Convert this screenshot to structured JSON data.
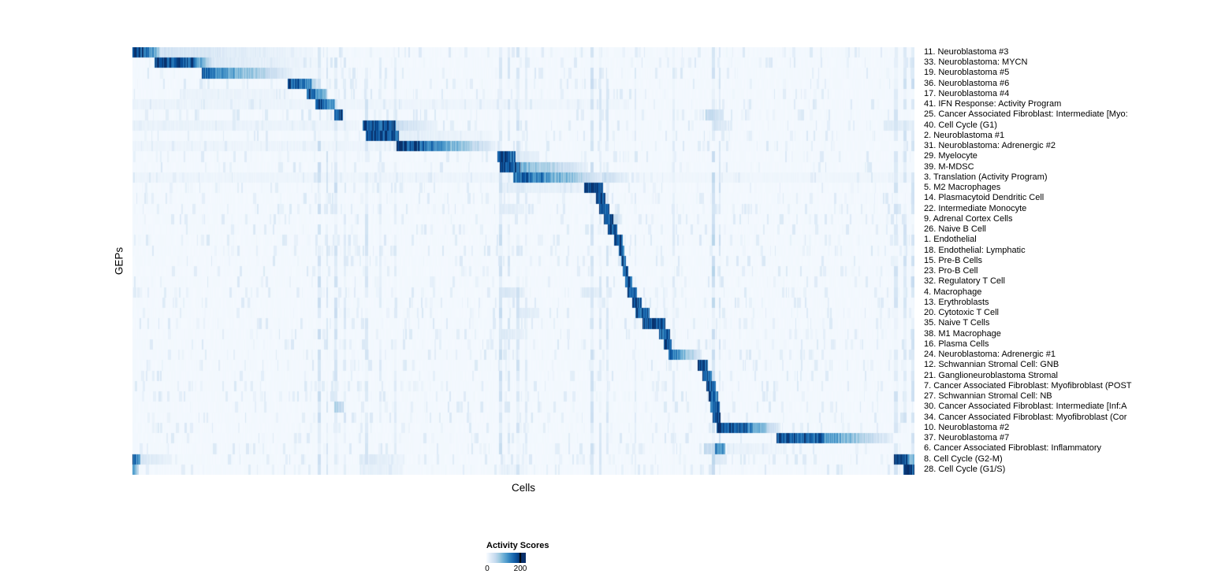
{
  "chart_data": {
    "type": "heatmap",
    "title": "",
    "xlabel": "Cells",
    "ylabel": "GEPs",
    "colormap": "Blues",
    "label_side": "right",
    "legend": {
      "title": "Activity Scores",
      "min_label": "0",
      "max_label": "200",
      "min_value": 0,
      "max_value": 200,
      "low_color": "#f7fbff",
      "high_color": "#08306b"
    },
    "noise_columns": [
      {
        "x": 0.236,
        "w": 0.004,
        "v": 0.22
      },
      {
        "x": 0.247,
        "w": 0.003,
        "v": 0.18
      },
      {
        "x": 0.258,
        "w": 0.004,
        "v": 0.2
      },
      {
        "x": 0.27,
        "w": 0.003,
        "v": 0.15
      },
      {
        "x": 0.297,
        "w": 0.004,
        "v": 0.18
      },
      {
        "x": 0.315,
        "w": 0.003,
        "v": 0.12
      },
      {
        "x": 0.334,
        "w": 0.003,
        "v": 0.12
      },
      {
        "x": 0.468,
        "w": 0.004,
        "v": 0.22
      },
      {
        "x": 0.479,
        "w": 0.003,
        "v": 0.16
      },
      {
        "x": 0.49,
        "w": 0.004,
        "v": 0.18
      },
      {
        "x": 0.502,
        "w": 0.003,
        "v": 0.12
      },
      {
        "x": 0.585,
        "w": 0.004,
        "v": 0.2
      },
      {
        "x": 0.596,
        "w": 0.003,
        "v": 0.16
      },
      {
        "x": 0.605,
        "w": 0.003,
        "v": 0.16
      },
      {
        "x": 0.642,
        "w": 0.002,
        "v": 0.12
      },
      {
        "x": 0.69,
        "w": 0.003,
        "v": 0.12
      },
      {
        "x": 0.74,
        "w": 0.004,
        "v": 0.25
      },
      {
        "x": 0.749,
        "w": 0.003,
        "v": 0.2
      },
      {
        "x": 0.973,
        "w": 0.005,
        "v": 0.18
      },
      {
        "x": 0.985,
        "w": 0.004,
        "v": 0.18
      },
      {
        "x": 0.995,
        "w": 0.004,
        "v": 0.2
      }
    ],
    "rows": [
      {
        "label": "11. Neuroblastoma #3",
        "segments": [
          [
            0.0,
            0.01,
            1.0,
            1.0
          ],
          [
            0.01,
            0.034,
            0.95,
            0.4
          ],
          [
            0.034,
            0.23,
            0.2,
            0.04
          ]
        ]
      },
      {
        "label": "33. Neuroblastoma: MYCN",
        "segments": [
          [
            0.028,
            0.08,
            1.0,
            0.85
          ],
          [
            0.08,
            0.1,
            0.7,
            0.25
          ],
          [
            0.1,
            0.235,
            0.15,
            0.04
          ]
        ]
      },
      {
        "label": "19. Neuroblastoma #5",
        "segments": [
          [
            0.088,
            0.115,
            0.85,
            0.65
          ],
          [
            0.115,
            0.205,
            0.6,
            0.08
          ],
          [
            0.205,
            0.245,
            0.06,
            0.03
          ]
        ]
      },
      {
        "label": "36. Neuroblastoma #6",
        "segments": [
          [
            0.198,
            0.228,
            0.95,
            0.65
          ],
          [
            0.228,
            0.24,
            0.4,
            0.08
          ]
        ]
      },
      {
        "label": "17. Neuroblastoma #4",
        "segments": [
          [
            0.222,
            0.247,
            0.95,
            0.45
          ],
          [
            0.06,
            0.2,
            0.07,
            0.05
          ]
        ]
      },
      {
        "label": "41. IFN Response: Activity Program",
        "segments": [
          [
            0.233,
            0.259,
            1.0,
            0.55
          ],
          [
            0.0,
            0.23,
            0.06,
            0.05
          ],
          [
            0.26,
            0.63,
            0.05,
            0.04
          ]
        ]
      },
      {
        "label": "25. Cancer Associated Fibroblast: Intermediate [Myo:",
        "segments": [
          [
            0.258,
            0.269,
            1.0,
            0.9
          ],
          [
            0.732,
            0.756,
            0.28,
            0.15
          ]
        ]
      },
      {
        "label": "40. Cell Cycle (G1)",
        "segments": [
          [
            0.294,
            0.336,
            0.95,
            0.85
          ],
          [
            0.336,
            0.39,
            0.25,
            0.06
          ],
          [
            0.0,
            0.29,
            0.07,
            0.05
          ],
          [
            0.74,
            0.76,
            0.18,
            0.12
          ],
          [
            0.96,
            1.0,
            0.12,
            0.1
          ]
        ]
      },
      {
        "label": "2. Neuroblastoma #1",
        "segments": [
          [
            0.298,
            0.34,
            1.0,
            0.95
          ],
          [
            0.34,
            0.46,
            0.1,
            0.04
          ]
        ]
      },
      {
        "label": "31. Neuroblastoma: Adrenergic #2",
        "segments": [
          [
            0.337,
            0.365,
            1.0,
            0.9
          ],
          [
            0.365,
            0.465,
            0.85,
            0.06
          ],
          [
            0.0,
            0.33,
            0.05,
            0.05
          ]
        ]
      },
      {
        "label": "29. Myelocyte",
        "segments": [
          [
            0.466,
            0.489,
            1.0,
            0.8
          ],
          [
            0.49,
            0.52,
            0.15,
            0.06
          ]
        ]
      },
      {
        "label": "39. M-MDSC",
        "segments": [
          [
            0.469,
            0.495,
            1.0,
            0.85
          ],
          [
            0.495,
            0.582,
            0.5,
            0.08
          ]
        ]
      },
      {
        "label": "3. Translation (Activity Program)",
        "segments": [
          [
            0.486,
            0.525,
            0.9,
            0.7
          ],
          [
            0.525,
            0.6,
            0.65,
            0.12
          ],
          [
            0.6,
            0.635,
            0.25,
            0.08
          ],
          [
            0.0,
            0.485,
            0.05,
            0.05
          ],
          [
            0.64,
            1.0,
            0.04,
            0.04
          ]
        ]
      },
      {
        "label": "5. M2 Macrophages",
        "segments": [
          [
            0.577,
            0.601,
            1.0,
            0.85
          ],
          [
            0.47,
            0.575,
            0.1,
            0.07
          ]
        ]
      },
      {
        "label": "14. Plasmacytoid Dendritic Cell",
        "segments": [
          [
            0.592,
            0.604,
            1.0,
            0.9
          ]
        ]
      },
      {
        "label": "22. Intermediate Monocyte",
        "segments": [
          [
            0.596,
            0.609,
            0.95,
            0.85
          ],
          [
            0.468,
            0.5,
            0.14,
            0.08
          ]
        ]
      },
      {
        "label": "9. Adrenal Cortex Cells",
        "segments": [
          [
            0.602,
            0.614,
            1.0,
            0.9
          ],
          [
            0.614,
            0.625,
            0.3,
            0.1
          ]
        ]
      },
      {
        "label": "26. Naive B Cell",
        "segments": [
          [
            0.607,
            0.619,
            1.0,
            0.9
          ]
        ]
      },
      {
        "label": "1. Endothelial",
        "segments": [
          [
            0.615,
            0.627,
            1.0,
            0.9
          ]
        ]
      },
      {
        "label": "18. Endothelial: Lymphatic",
        "segments": [
          [
            0.621,
            0.629,
            0.95,
            0.85
          ]
        ]
      },
      {
        "label": "15. Pre-B Cells",
        "segments": [
          [
            0.624,
            0.631,
            0.95,
            0.85
          ]
        ]
      },
      {
        "label": "23. Pro-B Cell",
        "segments": [
          [
            0.627,
            0.634,
            0.95,
            0.85
          ]
        ]
      },
      {
        "label": "32. Regulatory T Cell",
        "segments": [
          [
            0.63,
            0.639,
            0.95,
            0.85
          ]
        ]
      },
      {
        "label": "4. Macrophage",
        "segments": [
          [
            0.633,
            0.645,
            0.95,
            0.8
          ],
          [
            0.468,
            0.5,
            0.18,
            0.1
          ],
          [
            0.575,
            0.6,
            0.14,
            0.08
          ]
        ]
      },
      {
        "label": "13. Erythroblasts",
        "segments": [
          [
            0.639,
            0.651,
            1.0,
            0.9
          ]
        ]
      },
      {
        "label": "20. Cytotoxic T Cell",
        "segments": [
          [
            0.643,
            0.661,
            0.95,
            0.8
          ],
          [
            0.49,
            0.52,
            0.14,
            0.08
          ]
        ]
      },
      {
        "label": "35. Naive T Cells",
        "segments": [
          [
            0.652,
            0.681,
            1.0,
            0.9
          ]
        ]
      },
      {
        "label": "38. M1 Macrophage",
        "segments": [
          [
            0.673,
            0.687,
            0.95,
            0.8
          ],
          [
            0.468,
            0.5,
            0.14,
            0.08
          ]
        ]
      },
      {
        "label": "16. Plasma Cells",
        "segments": [
          [
            0.679,
            0.689,
            0.95,
            0.85
          ]
        ]
      },
      {
        "label": "24. Neuroblastoma: Adrenergic #1",
        "segments": [
          [
            0.685,
            0.702,
            0.85,
            0.6
          ],
          [
            0.702,
            0.727,
            0.5,
            0.12
          ]
        ]
      },
      {
        "label": "12. Schwannian Stromal Cell: GNB",
        "segments": [
          [
            0.722,
            0.735,
            1.0,
            0.9
          ]
        ]
      },
      {
        "label": "21. Ganglioneuroblastoma Stromal",
        "segments": [
          [
            0.728,
            0.74,
            0.95,
            0.8
          ]
        ]
      },
      {
        "label": "7. Cancer Associated Fibroblast: Myofibroblast (POST",
        "segments": [
          [
            0.733,
            0.745,
            1.0,
            0.85
          ]
        ]
      },
      {
        "label": "27. Schwannian Stromal Cell: NB",
        "segments": [
          [
            0.736,
            0.748,
            0.95,
            0.8
          ]
        ]
      },
      {
        "label": "30. Cancer Associated Fibroblast: Intermediate [Inf:A",
        "segments": [
          [
            0.738,
            0.75,
            0.95,
            0.85
          ],
          [
            0.258,
            0.27,
            0.35,
            0.25
          ]
        ]
      },
      {
        "label": "34. Cancer Associated Fibroblast: Myofibroblast (Cor",
        "segments": [
          [
            0.741,
            0.752,
            1.0,
            0.85
          ]
        ]
      },
      {
        "label": "10. Neuroblastoma #2",
        "segments": [
          [
            0.746,
            0.785,
            1.0,
            0.85
          ],
          [
            0.785,
            0.828,
            0.75,
            0.1
          ]
        ]
      },
      {
        "label": "37. Neuroblastoma #7",
        "segments": [
          [
            0.823,
            0.885,
            1.0,
            0.8
          ],
          [
            0.885,
            0.972,
            0.65,
            0.08
          ]
        ]
      },
      {
        "label": "6. Cancer Associated Fibroblast: Inflammatory",
        "segments": [
          [
            0.744,
            0.758,
            0.8,
            0.55
          ],
          [
            0.73,
            0.744,
            0.3,
            0.2
          ],
          [
            0.76,
            0.83,
            0.08,
            0.05
          ]
        ]
      },
      {
        "label": "8. Cell Cycle (G2-M)",
        "segments": [
          [
            0.973,
            0.99,
            1.0,
            0.9
          ],
          [
            0.0,
            0.01,
            0.85,
            0.5
          ],
          [
            0.01,
            0.05,
            0.18,
            0.06
          ],
          [
            0.29,
            0.345,
            0.12,
            0.07
          ],
          [
            0.74,
            0.76,
            0.14,
            0.1
          ],
          [
            0.99,
            1.0,
            0.6,
            0.4
          ]
        ]
      },
      {
        "label": "28. Cell Cycle (G1/S)",
        "segments": [
          [
            0.985,
            1.0,
            1.0,
            0.95
          ],
          [
            0.0,
            0.008,
            0.5,
            0.3
          ],
          [
            0.29,
            0.345,
            0.1,
            0.06
          ],
          [
            0.47,
            0.5,
            0.08,
            0.06
          ]
        ]
      }
    ]
  }
}
